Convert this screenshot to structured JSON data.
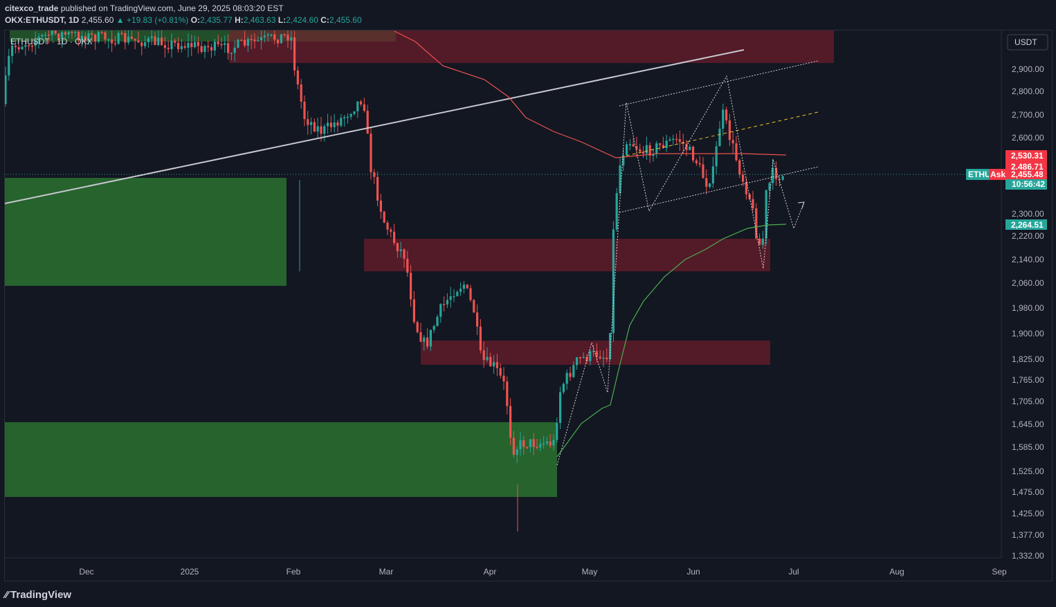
{
  "header": {
    "author": "citexco_trade",
    "published": "published on TradingView.com, June 29, 2025 08:03:20 EST",
    "symbol_line": "OKX:ETHUSDT, 1D",
    "last": "2,455.60",
    "change": "+19.83 (+0.81%)",
    "o_label": "O:",
    "o_val": "2,435.77",
    "h_label": "H:",
    "h_val": "2,463.63",
    "l_label": "L:",
    "l_val": "2,424.60",
    "c_label": "C:",
    "c_val": "2,455.60"
  },
  "chart": {
    "legend": "ETHUSDT · 1D · OKX",
    "currency_button": "USDT",
    "price_ticks": [
      "2,900.00",
      "2,800.00",
      "2,700.00",
      "2,600.00",
      "2,300.00",
      "2,220.00",
      "2,140.00",
      "2,060.00",
      "1,980.00",
      "1,900.00",
      "1,825.00",
      "1,765.00",
      "1,705.00",
      "1,645.00",
      "1,585.00",
      "1,525.00",
      "1,475.00",
      "1,425.00",
      "1,377.00",
      "1,332.00"
    ],
    "time_ticks": [
      "Dec",
      "2025",
      "Feb",
      "Mar",
      "Apr",
      "May",
      "Jun",
      "Jul",
      "Aug",
      "Sep"
    ],
    "badges": {
      "b1": "2,530.31",
      "b2": "2,486.71",
      "b3": "2,455.48",
      "b4": "10:56:42",
      "b5": "2,264.51",
      "symbol_tag": "ETHU",
      "ask_tag": "Ask"
    },
    "colors": {
      "bg": "#131722",
      "up": "#26a69a",
      "down": "#ef5350",
      "demand_zone": "#2e7d32",
      "supply_zone": "#7f1d2d",
      "trendline": "#c8c8d0",
      "ma_red": "#ef5350",
      "ma_green": "#4caf50"
    }
  },
  "footer": {
    "brand": "TradingView"
  }
}
